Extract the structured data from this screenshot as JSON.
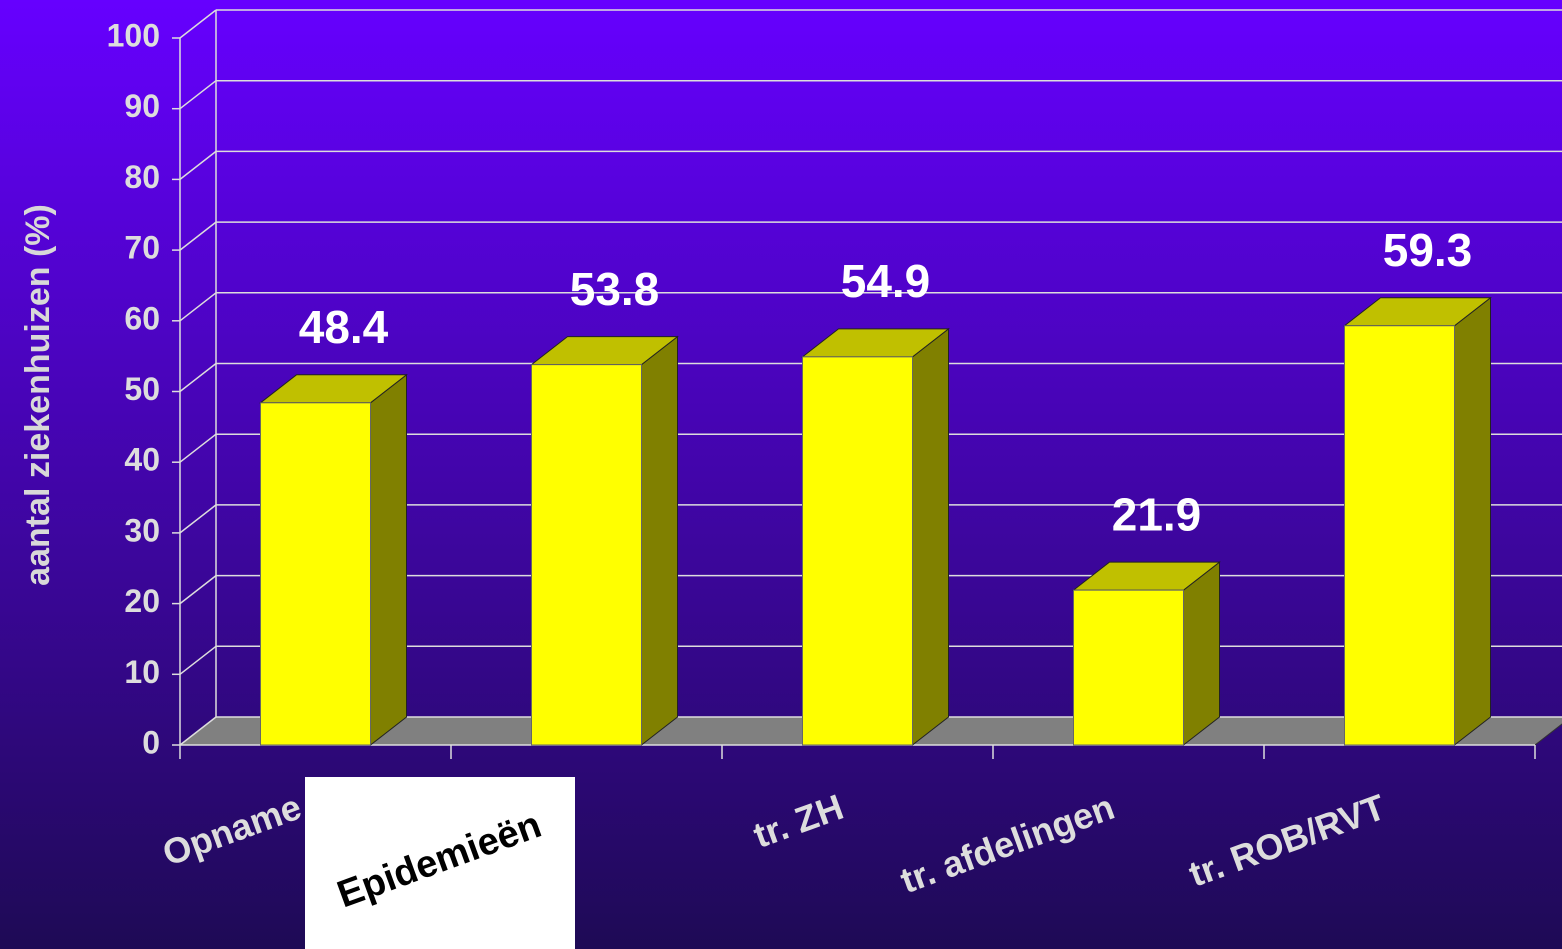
{
  "chart_data": {
    "type": "bar3d",
    "y_label": "aantal ziekenhuizen (%)",
    "categories": [
      "Opname",
      "Epidemieën",
      "tr. ZH",
      "tr. afdelingen",
      "tr. ROB/RVT"
    ],
    "values": [
      48.4,
      53.8,
      54.9,
      21.9,
      59.3
    ],
    "color": "#ffff00",
    "ylim": [
      0,
      100
    ],
    "yticks": [
      0,
      10,
      20,
      30,
      40,
      50,
      60,
      70,
      80,
      90,
      100
    ],
    "grid": true
  }
}
